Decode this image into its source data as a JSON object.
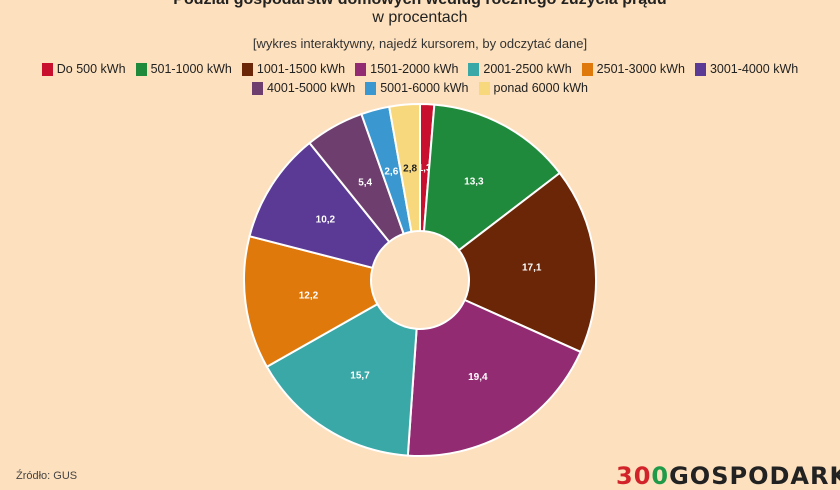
{
  "title": "Podział gospodarstw domowych według rocznego zużycia prądu",
  "subtitle": "w procentach",
  "hint": "[wykres interaktywny, najedź kursorem, by odczytać dane]",
  "source": "Źródło: GUS",
  "logo": {
    "part1": "3",
    "part2": "0",
    "part3": "0",
    "part4": "GOSPODARKA"
  },
  "chart_data": {
    "type": "pie",
    "donut": true,
    "categories": [
      "Do 500 kWh",
      "501-1000 kWh",
      "1001-1500 kWh",
      "1501-2000 kWh",
      "2001-2500 kWh",
      "2501-3000 kWh",
      "3001-4000 kWh",
      "4001-5000 kWh",
      "5001-6000 kWh",
      "ponad 6000 kWh"
    ],
    "values": [
      1.3,
      13.3,
      17.1,
      19.4,
      15.7,
      12.2,
      10.2,
      5.4,
      2.6,
      2.8
    ],
    "labels": [
      "1,3",
      "13,3",
      "17,1",
      "19,4",
      "15,7",
      "12,2",
      "10,2",
      "5,4",
      "2,6",
      "2,8"
    ],
    "colors": [
      "#c8102e",
      "#1f8a3c",
      "#6b2607",
      "#932b73",
      "#3aa8a6",
      "#e0790c",
      "#5b3a96",
      "#6e3f6e",
      "#3a97cf",
      "#f7d87c"
    ],
    "label_colors": [
      "#ffffff",
      "#ffffff",
      "#ffffff",
      "#ffffff",
      "#ffffff",
      "#ffffff",
      "#ffffff",
      "#ffffff",
      "#ffffff",
      "#222222"
    ],
    "legend_placement": "top"
  }
}
